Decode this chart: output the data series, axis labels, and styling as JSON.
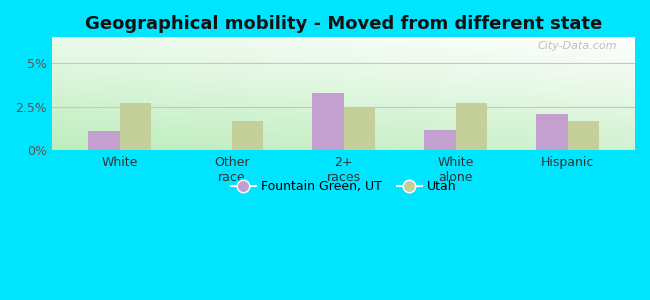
{
  "title": "Geographical mobility - Moved from different state",
  "categories": [
    "White",
    "Other\nrace",
    "2+\nraces",
    "White\nalone",
    "Hispanic"
  ],
  "fountain_green": [
    1.1,
    0.0,
    3.3,
    1.2,
    2.1
  ],
  "utah": [
    2.7,
    1.7,
    2.5,
    2.7,
    1.7
  ],
  "bar_color_fg": "#c4a0d0",
  "bar_color_ut": "#c5cf9a",
  "ylim": [
    0,
    6.5
  ],
  "yticks": [
    0.0,
    2.5,
    5.0
  ],
  "ytick_labels": [
    "0%",
    "2.5%",
    "5%"
  ],
  "grid_color": "#e0b8c8",
  "outer_bg": "#00e5ff",
  "legend_fg": "Fountain Green, UT",
  "legend_ut": "Utah",
  "title_fontsize": 13,
  "watermark": "City-Data.com",
  "bg_colors_lr": [
    "#c8e8c0",
    "#ffffff"
  ],
  "bg_colors_tb": [
    "#e8f5e0",
    "#f8fff8"
  ]
}
